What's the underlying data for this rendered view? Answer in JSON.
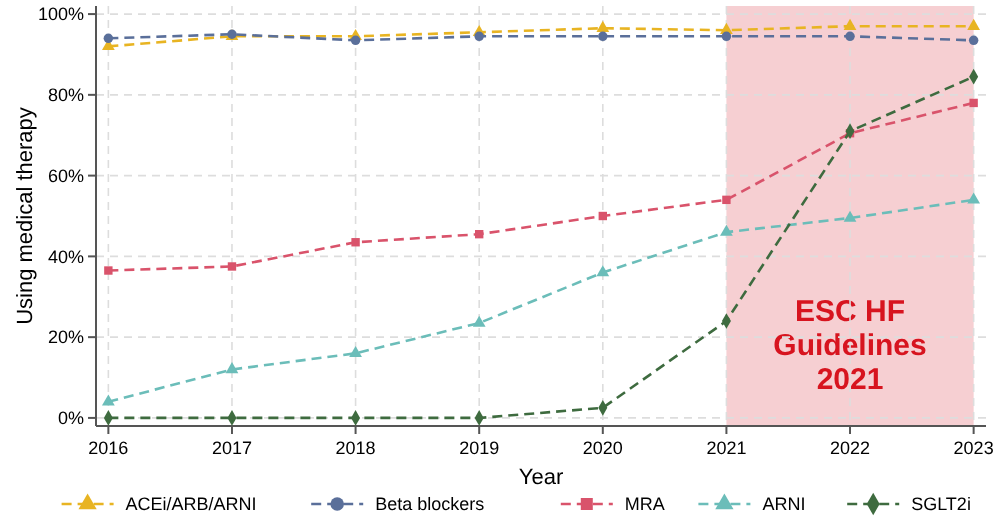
{
  "chart_data": {
    "type": "line",
    "xlabel": "Year",
    "ylabel": "Using medical therapy",
    "x": [
      2016,
      2017,
      2018,
      2019,
      2020,
      2021,
      2022,
      2023
    ],
    "xlim": [
      2015.9,
      2023.1
    ],
    "xticks": [
      2016,
      2017,
      2018,
      2019,
      2020,
      2021,
      2022,
      2023
    ],
    "ylim": [
      -2,
      102
    ],
    "yticks": [
      {
        "value": 0,
        "label": "0%"
      },
      {
        "value": 20,
        "label": "20%"
      },
      {
        "value": 40,
        "label": "40%"
      },
      {
        "value": 60,
        "label": "60%"
      },
      {
        "value": 80,
        "label": "80%"
      },
      {
        "value": 100,
        "label": "100%"
      }
    ],
    "grid": true,
    "legend": "bottom",
    "line_style": "dashed",
    "bands": [
      {
        "axis": "x",
        "from": 2021,
        "to": 2023,
        "label": "ESC HF Guidelines 2021",
        "color": "#f6cfd2"
      }
    ],
    "series": [
      {
        "name": "ACEi/ARB/ARNI",
        "color": "#e8b422",
        "marker": "triangle",
        "values": [
          92,
          94.5,
          94.5,
          95.5,
          96.5,
          96,
          97,
          97
        ]
      },
      {
        "name": "Beta blockers",
        "color": "#5a6f9a",
        "marker": "circle",
        "values": [
          94,
          95,
          93.5,
          94.5,
          94.5,
          94.5,
          94.5,
          93.5
        ]
      },
      {
        "name": "MRA",
        "color": "#d9536b",
        "marker": "square",
        "values": [
          36.5,
          37.5,
          43.5,
          45.5,
          50,
          54,
          70.5,
          78
        ]
      },
      {
        "name": "ARNI",
        "color": "#6bbdb9",
        "marker": "triangle",
        "values": [
          4,
          12,
          16,
          23.5,
          36,
          46,
          49.5,
          54
        ]
      },
      {
        "name": "SGLT2i",
        "color": "#3e6b3f",
        "marker": "diamond",
        "values": [
          0,
          0,
          0,
          0,
          2.5,
          24,
          71,
          84.5
        ]
      }
    ]
  }
}
